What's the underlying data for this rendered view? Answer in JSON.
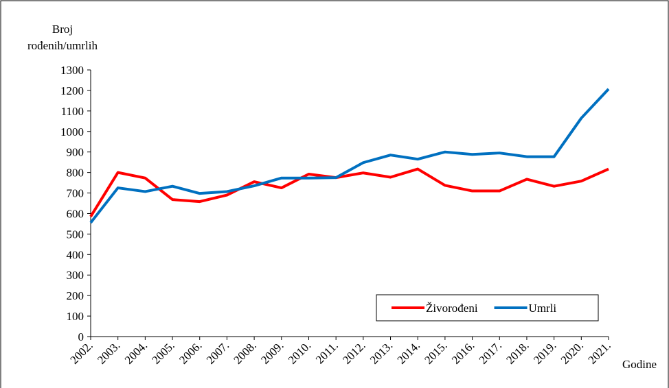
{
  "chart_data": {
    "type": "line",
    "ylabel": [
      "Broj",
      "rođenih/umrlih"
    ],
    "xlabel": "Godine",
    "categories": [
      "2002.",
      "2003.",
      "2004.",
      "2005.",
      "2006.",
      "2007.",
      "2008.",
      "2009.",
      "2010.",
      "2011.",
      "2012.",
      "2013.",
      "2014.",
      "2015.",
      "2016.",
      "2017.",
      "2018.",
      "2019.",
      "2020.",
      "2021."
    ],
    "series": [
      {
        "name": "Živorođeni",
        "color": "#ff0000",
        "values": [
          585,
          800,
          773,
          668,
          658,
          690,
          755,
          725,
          792,
          775,
          798,
          777,
          817,
          737,
          710,
          710,
          767,
          733,
          758,
          817
        ]
      },
      {
        "name": "Umrli",
        "color": "#0070c0",
        "values": [
          555,
          725,
          707,
          733,
          698,
          707,
          735,
          773,
          773,
          775,
          848,
          885,
          865,
          900,
          888,
          895,
          877,
          877,
          1065,
          1207
        ]
      }
    ],
    "ylim": [
      0,
      1300
    ],
    "yticks": [
      0,
      100,
      200,
      300,
      400,
      500,
      600,
      700,
      800,
      900,
      1000,
      1100,
      1200,
      1300
    ],
    "grid": false,
    "legend": "lower-right"
  }
}
